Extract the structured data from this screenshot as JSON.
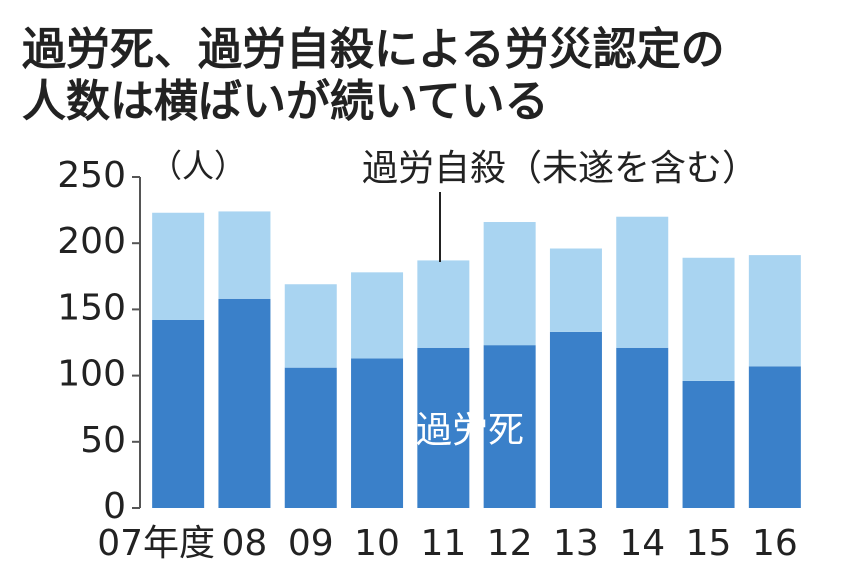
{
  "chart_data": {
    "type": "stacked_bar",
    "title": [
      "過労死、過労自殺による労災認定の",
      "人数は横ばいが続いている"
    ],
    "y_unit": "（人）",
    "categories": [
      "07年度",
      "08",
      "09",
      "10",
      "11",
      "12",
      "13",
      "14",
      "15",
      "16"
    ],
    "series": [
      {
        "name": "過労死",
        "color": "#3a80c9",
        "values": [
          142,
          158,
          106,
          113,
          121,
          123,
          133,
          121,
          96,
          107
        ]
      },
      {
        "name": "過労自殺（未遂を含む）",
        "color": "#a9d4f1",
        "values": [
          81,
          66,
          63,
          65,
          66,
          93,
          63,
          99,
          93,
          84
        ]
      }
    ],
    "ylim": [
      0,
      250
    ],
    "yticks": [
      0,
      50,
      100,
      150,
      200,
      250
    ],
    "grid": false
  }
}
